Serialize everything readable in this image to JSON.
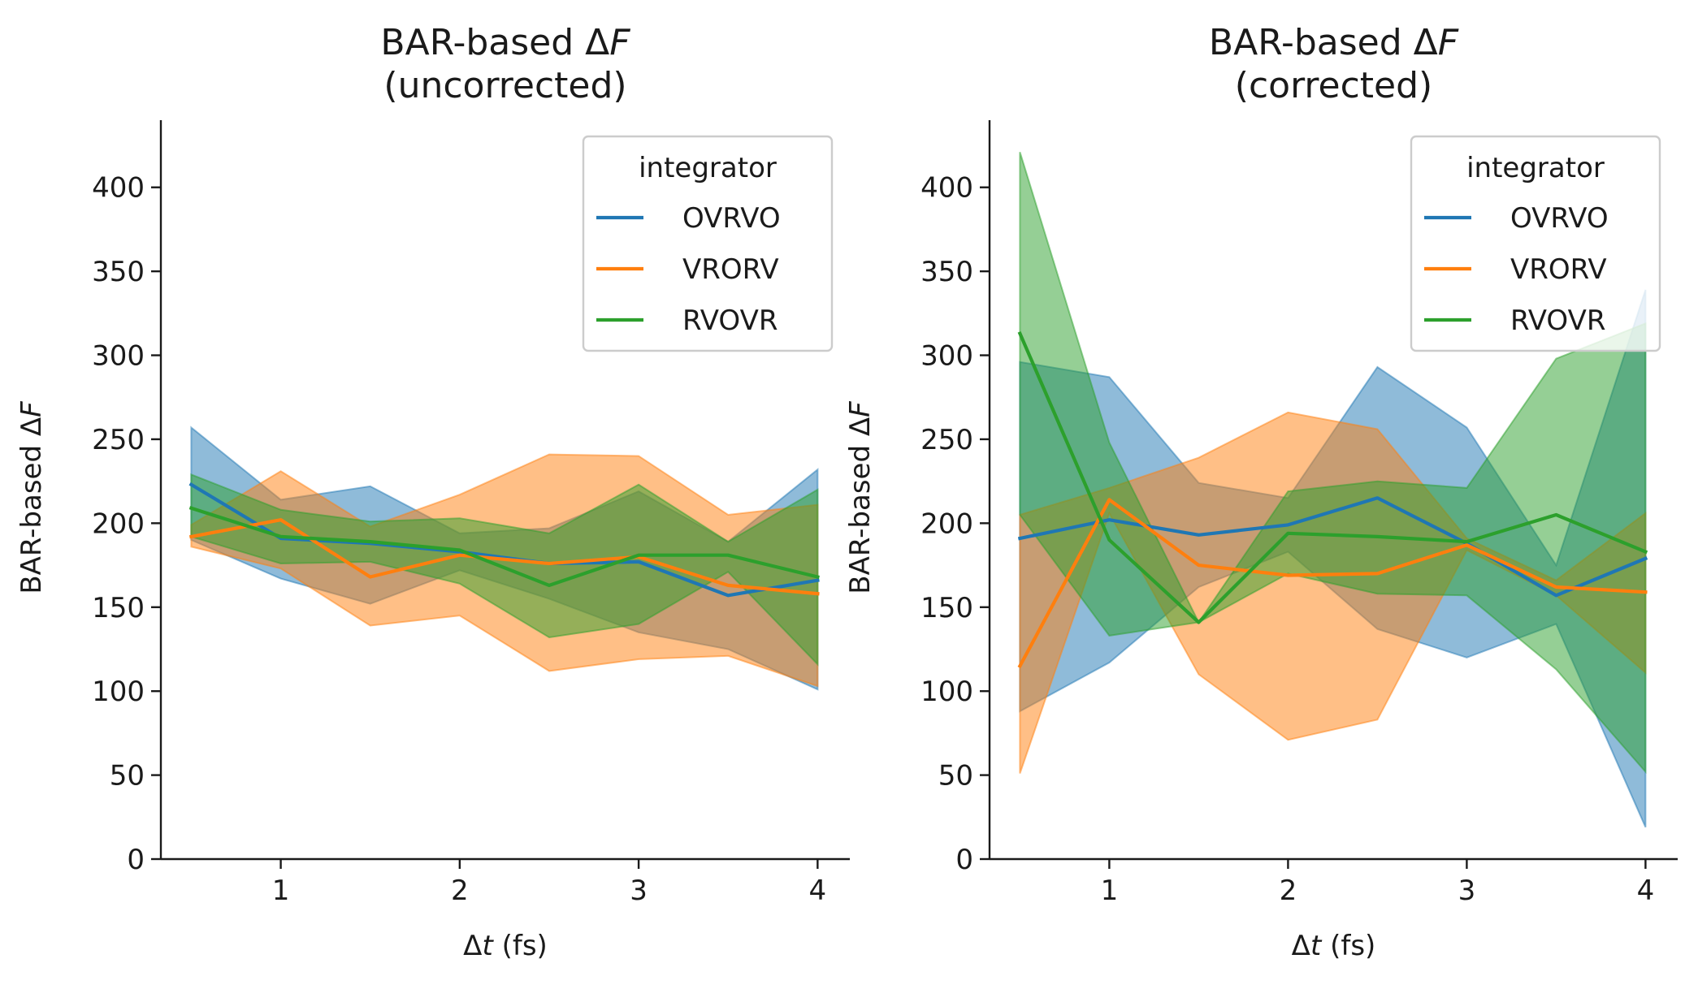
{
  "colors": {
    "OVRVO": "#1f77b4",
    "VRORV": "#ff7f0e",
    "RVOVR": "#2ca02c",
    "axis": "#1a1a1a",
    "legend_border": "#cccccc"
  },
  "chart_data": [
    {
      "type": "line",
      "title_line1": "BAR-based ΔF",
      "title_line2": "(uncorrected)",
      "xlabel": "Δt (fs)",
      "ylabel": "BAR-based ΔF",
      "xlim": [
        0.33,
        4.18
      ],
      "ylim": [
        0,
        440
      ],
      "xticks": [
        1,
        2,
        3,
        4
      ],
      "yticks": [
        0,
        50,
        100,
        150,
        200,
        250,
        300,
        350,
        400
      ],
      "grid": false,
      "legend": {
        "title": "integrator",
        "placement": "top-right"
      },
      "x": [
        0.5,
        1.0,
        1.5,
        2.0,
        2.5,
        3.0,
        3.5,
        4.0
      ],
      "series": [
        {
          "name": "OVRVO",
          "values": [
            223,
            191,
            188,
            183,
            176,
            177,
            157,
            166
          ],
          "lower": [
            190,
            167,
            152,
            172,
            155,
            135,
            125,
            101
          ],
          "upper": [
            257,
            214,
            222,
            194,
            197,
            219,
            189,
            232
          ]
        },
        {
          "name": "VRORV",
          "values": [
            192,
            202,
            168,
            181,
            176,
            180,
            163,
            158
          ],
          "lower": [
            186,
            173,
            139,
            145,
            112,
            119,
            121,
            103
          ],
          "upper": [
            199,
            231,
            198,
            217,
            241,
            240,
            205,
            211
          ]
        },
        {
          "name": "RVOVR",
          "values": [
            209,
            192,
            189,
            184,
            163,
            181,
            181,
            168
          ],
          "lower": [
            192,
            176,
            177,
            164,
            132,
            140,
            171,
            116
          ],
          "upper": [
            229,
            208,
            201,
            203,
            194,
            223,
            189,
            220
          ]
        }
      ]
    },
    {
      "type": "line",
      "title_line1": "BAR-based ΔF",
      "title_line2": "(corrected)",
      "xlabel": "Δt (fs)",
      "ylabel": "BAR-based ΔF",
      "xlim": [
        0.33,
        4.18
      ],
      "ylim": [
        0,
        440
      ],
      "xticks": [
        1,
        2,
        3,
        4
      ],
      "yticks": [
        0,
        50,
        100,
        150,
        200,
        250,
        300,
        350,
        400
      ],
      "grid": false,
      "legend": {
        "title": "integrator",
        "placement": "top-right"
      },
      "x": [
        0.5,
        1.0,
        1.5,
        2.0,
        2.5,
        3.0,
        3.5,
        4.0
      ],
      "series": [
        {
          "name": "OVRVO",
          "values": [
            191,
            202,
            193,
            199,
            215,
            188,
            157,
            179
          ],
          "lower": [
            88,
            117,
            162,
            183,
            137,
            120,
            140,
            19
          ],
          "upper": [
            296,
            287,
            224,
            215,
            293,
            257,
            175,
            339
          ]
        },
        {
          "name": "VRORV",
          "values": [
            115,
            214,
            175,
            169,
            170,
            187,
            162,
            159
          ],
          "lower": [
            51,
            206,
            110,
            71,
            83,
            184,
            157,
            111
          ],
          "upper": [
            205,
            221,
            239,
            266,
            256,
            191,
            166,
            206
          ]
        },
        {
          "name": "RVOVR",
          "values": [
            313,
            190,
            141,
            194,
            192,
            189,
            205,
            183
          ],
          "lower": [
            205,
            133,
            141,
            170,
            158,
            157,
            113,
            52
          ],
          "upper": [
            421,
            248,
            141,
            219,
            225,
            221,
            298,
            319
          ]
        }
      ]
    }
  ]
}
